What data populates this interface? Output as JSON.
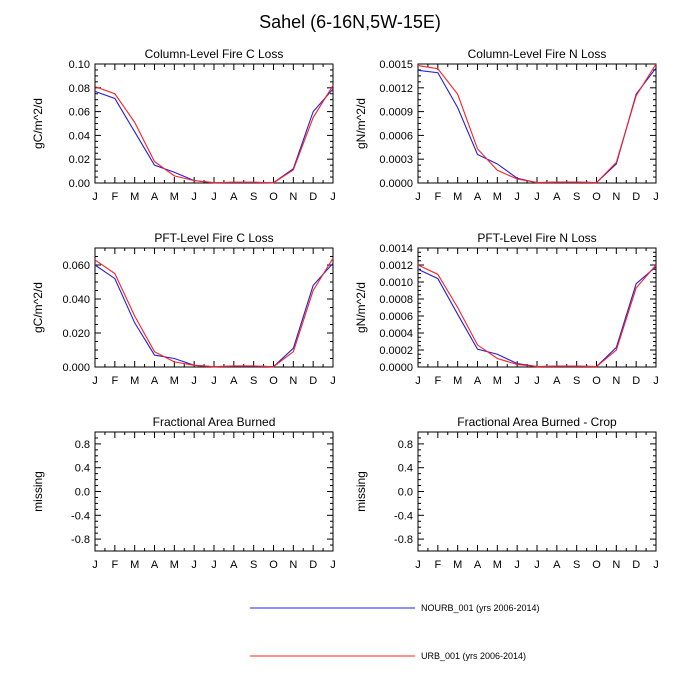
{
  "title": "Sahel (6-16N,5W-15E)",
  "colors": {
    "NOURB": "#2020e0",
    "URB": "#ff2020"
  },
  "months": [
    "J",
    "F",
    "M",
    "A",
    "M",
    "J",
    "J",
    "A",
    "S",
    "O",
    "N",
    "D",
    "J"
  ],
  "legend": [
    {
      "name": "NOURB_001 (yrs 2006-2014)",
      "color": "#2020e0"
    },
    {
      "name": "URB_001 (yrs 2006-2014)",
      "color": "#ff2020"
    }
  ],
  "chart_data": [
    {
      "type": "line",
      "title": "Column-Level Fire C Loss",
      "ylabel": "gC/m^2/d",
      "ylim": [
        0,
        0.1
      ],
      "yticks": [
        0.0,
        0.02,
        0.04,
        0.06,
        0.08,
        0.1
      ],
      "ytick_labels": [
        "0.00",
        "0.02",
        "0.04",
        "0.06",
        "0.08",
        "0.10"
      ],
      "categories": [
        "J",
        "F",
        "M",
        "A",
        "M",
        "J",
        "J",
        "A",
        "S",
        "O",
        "N",
        "D",
        "J"
      ],
      "series": [
        {
          "name": "NOURB_001 (yrs 2006-2014)",
          "values": [
            0.077,
            0.071,
            0.043,
            0.015,
            0.009,
            0.002,
            0.0003,
            0.0005,
            0.0005,
            0.0002,
            0.012,
            0.06,
            0.079
          ]
        },
        {
          "name": "URB_001 (yrs 2006-2014)",
          "values": [
            0.081,
            0.075,
            0.051,
            0.018,
            0.006,
            0.002,
            0.0003,
            0.0007,
            0.0007,
            0.0002,
            0.011,
            0.055,
            0.082
          ]
        }
      ]
    },
    {
      "type": "line",
      "title": "Column-Level Fire N Loss",
      "ylabel": "gN/m^2/d",
      "ylim": [
        0,
        0.0015
      ],
      "yticks": [
        0.0,
        0.0003,
        0.0006,
        0.0009,
        0.0012,
        0.0015
      ],
      "ytick_labels": [
        "0.0000",
        "0.0003",
        "0.0006",
        "0.0009",
        "0.0012",
        "0.0015"
      ],
      "categories": [
        "J",
        "F",
        "M",
        "A",
        "M",
        "J",
        "J",
        "A",
        "S",
        "O",
        "N",
        "D",
        "J"
      ],
      "series": [
        {
          "name": "NOURB_001 (yrs 2006-2014)",
          "values": [
            0.00142,
            0.00139,
            0.00095,
            0.00036,
            0.00024,
            6e-05,
            5e-06,
            1e-05,
            1e-05,
            5e-06,
            0.00024,
            0.00112,
            0.00145
          ]
        },
        {
          "name": "URB_001 (yrs 2006-2014)",
          "values": [
            0.00148,
            0.00144,
            0.00112,
            0.00043,
            0.00016,
            5e-05,
            5e-06,
            1e-05,
            1e-05,
            5e-06,
            0.00026,
            0.0011,
            0.0015
          ]
        }
      ]
    },
    {
      "type": "line",
      "title": "PFT-Level Fire C Loss",
      "ylabel": "gC/m^2/d",
      "ylim": [
        0,
        0.07
      ],
      "yticks": [
        0.0,
        0.02,
        0.04,
        0.06
      ],
      "ytick_labels": [
        "0.000",
        "0.020",
        "0.040",
        "0.060"
      ],
      "categories": [
        "J",
        "F",
        "M",
        "A",
        "M",
        "J",
        "J",
        "A",
        "S",
        "O",
        "N",
        "D",
        "J"
      ],
      "series": [
        {
          "name": "NOURB_001 (yrs 2006-2014)",
          "values": [
            0.06,
            0.052,
            0.026,
            0.007,
            0.005,
            0.001,
            0.0002,
            0.0005,
            0.0005,
            0.0002,
            0.011,
            0.048,
            0.061
          ]
        },
        {
          "name": "URB_001 (yrs 2006-2014)",
          "values": [
            0.063,
            0.055,
            0.03,
            0.009,
            0.003,
            0.001,
            0.0002,
            0.0006,
            0.0006,
            0.0002,
            0.009,
            0.045,
            0.064
          ]
        }
      ]
    },
    {
      "type": "line",
      "title": "PFT-Level Fire N Loss",
      "ylabel": "gN/m^2/d",
      "ylim": [
        0,
        0.0014
      ],
      "yticks": [
        0.0,
        0.0002,
        0.0004,
        0.0006,
        0.0008,
        0.001,
        0.0012,
        0.0014
      ],
      "ytick_labels": [
        "0.0000",
        "0.0002",
        "0.0004",
        "0.0006",
        "0.0008",
        "0.0010",
        "0.0012",
        "0.0014"
      ],
      "categories": [
        "J",
        "F",
        "M",
        "A",
        "M",
        "J",
        "J",
        "A",
        "S",
        "O",
        "N",
        "D",
        "J"
      ],
      "series": [
        {
          "name": "NOURB_001 (yrs 2006-2014)",
          "values": [
            0.00115,
            0.00104,
            0.00062,
            0.00021,
            0.00015,
            4e-05,
            5e-06,
            1e-05,
            1e-05,
            5e-06,
            0.00023,
            0.00098,
            0.00118
          ]
        },
        {
          "name": "URB_001 (yrs 2006-2014)",
          "values": [
            0.0012,
            0.00109,
            0.0007,
            0.00026,
            0.0001,
            3e-05,
            5e-06,
            1e-05,
            1e-05,
            5e-06,
            0.0002,
            0.00093,
            0.0012
          ]
        }
      ]
    },
    {
      "type": "line",
      "title": "Fractional Area Burned",
      "ylabel": "missing",
      "ylim": [
        -1.0,
        1.0
      ],
      "yticks": [
        -0.8,
        -0.4,
        0.0,
        0.4,
        0.8
      ],
      "ytick_labels": [
        "-0.8",
        "-0.4",
        "0.0",
        "0.4",
        "0.8"
      ],
      "categories": [
        "J",
        "F",
        "M",
        "A",
        "M",
        "J",
        "J",
        "A",
        "S",
        "O",
        "N",
        "D",
        "J"
      ],
      "series": []
    },
    {
      "type": "line",
      "title": "Fractional Area Burned - Crop",
      "ylabel": "missing",
      "ylim": [
        -1.0,
        1.0
      ],
      "yticks": [
        -0.8,
        -0.4,
        0.0,
        0.4,
        0.8
      ],
      "ytick_labels": [
        "-0.8",
        "-0.4",
        "0.0",
        "0.4",
        "0.8"
      ],
      "categories": [
        "J",
        "F",
        "M",
        "A",
        "M",
        "J",
        "J",
        "A",
        "S",
        "O",
        "N",
        "D",
        "J"
      ],
      "series": []
    }
  ]
}
